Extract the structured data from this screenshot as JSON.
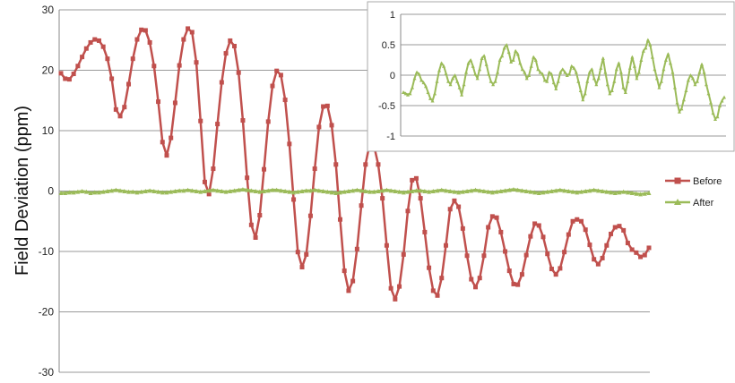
{
  "chart_data": [
    {
      "type": "line",
      "title": "",
      "xlabel": "",
      "ylabel": "Field Deviation (ppm)",
      "ylim": [
        -30,
        30
      ],
      "yticks": [
        30,
        20,
        10,
        0,
        -10,
        -20,
        -30
      ],
      "grid": true,
      "legend_position": "right",
      "series": [
        {
          "name": "Before",
          "color": "#c0504d",
          "marker": "square",
          "values": [
            19.5,
            18.6,
            18.5,
            19.4,
            20.7,
            22.2,
            23.6,
            24.6,
            25.1,
            24.9,
            23.9,
            21.9,
            18.6,
            13.5,
            12.4,
            13.9,
            17.7,
            21.9,
            25.1,
            26.7,
            26.6,
            24.6,
            20.7,
            14.8,
            8.1,
            5.9,
            8.8,
            14.6,
            20.8,
            25.1,
            26.9,
            26.3,
            21.3,
            11.6,
            1.5,
            -0.5,
            3.7,
            11.1,
            18.0,
            22.8,
            24.9,
            24.0,
            19.6,
            11.7,
            2.2,
            -5.6,
            -7.7,
            -4.0,
            3.6,
            11.5,
            17.4,
            19.9,
            19.2,
            15.1,
            7.8,
            -1.4,
            -10.1,
            -12.6,
            -10.5,
            -4.1,
            3.7,
            10.6,
            14.0,
            14.1,
            10.9,
            4.4,
            -4.7,
            -13.2,
            -16.5,
            -14.9,
            -9.6,
            -2.4,
            4.4,
            7.9,
            7.5,
            4.4,
            -1.2,
            -9.0,
            -16.1,
            -17.9,
            -15.8,
            -10.5,
            -3.3,
            1.8,
            2.1,
            -1.2,
            -6.8,
            -12.7,
            -16.5,
            -17.3,
            -14.4,
            -9.0,
            -3.0,
            -1.6,
            -2.6,
            -6.2,
            -10.7,
            -14.6,
            -15.9,
            -14.4,
            -10.7,
            -6.0,
            -4.2,
            -4.4,
            -6.8,
            -10.0,
            -13.2,
            -15.4,
            -15.5,
            -13.8,
            -10.6,
            -7.5,
            -5.4,
            -5.7,
            -7.6,
            -10.4,
            -12.9,
            -13.8,
            -12.8,
            -10.1,
            -7.2,
            -5.0,
            -4.7,
            -5.0,
            -6.4,
            -8.9,
            -11.3,
            -12.1,
            -11.1,
            -9.0,
            -7.1,
            -6.0,
            -5.8,
            -6.5,
            -8.6,
            -9.7,
            -10.2,
            -10.9,
            -10.6,
            -9.4
          ]
        },
        {
          "name": "After",
          "color": "#9bbb59",
          "marker": "triangle",
          "values": [
            -0.3,
            -0.3,
            -0.2,
            -0.2,
            -0.1,
            0.0,
            -0.1,
            -0.3,
            -0.2,
            -0.2,
            -0.1,
            0.0,
            0.1,
            0.2,
            0.1,
            0.0,
            -0.1,
            -0.1,
            -0.2,
            -0.1,
            0.0,
            0.1,
            0.0,
            -0.1,
            -0.2,
            -0.2,
            -0.1,
            0.0,
            0.1,
            0.1,
            0.2,
            0.1,
            0.0,
            -0.1,
            0.0,
            0.1,
            0.2,
            0.1,
            0.0,
            -0.1,
            0.0,
            0.1,
            0.2,
            0.3,
            0.2,
            0.1,
            0.0,
            -0.1,
            0.0,
            0.1,
            0.2,
            0.2,
            0.1,
            0.0,
            -0.1,
            -0.2,
            -0.1,
            0.0,
            0.1,
            0.1,
            0.2,
            0.1,
            0.0,
            -0.1,
            -0.2,
            -0.3,
            -0.2,
            -0.1,
            0.0,
            0.1,
            0.2,
            0.1,
            0.0,
            -0.1,
            -0.1,
            0.0,
            0.1,
            0.2,
            0.1,
            0.0,
            -0.1,
            -0.2,
            -0.1,
            0.0,
            0.1,
            0.1,
            0.0,
            -0.1,
            0.0,
            0.1,
            0.2,
            0.1,
            0.0,
            -0.1,
            -0.2,
            -0.1,
            0.0,
            0.1,
            0.2,
            0.1,
            0.0,
            -0.1,
            -0.2,
            -0.1,
            0.0,
            0.1,
            0.2,
            0.3,
            0.2,
            0.1,
            0.0,
            -0.1,
            -0.2,
            -0.3,
            -0.2,
            -0.1,
            0.0,
            0.1,
            0.2,
            0.1,
            0.0,
            -0.1,
            -0.2,
            -0.1,
            0.0,
            0.1,
            0.2,
            0.1,
            0.0,
            -0.1,
            -0.2,
            -0.3,
            -0.2,
            -0.1,
            -0.2,
            -0.3,
            -0.4,
            -0.5,
            -0.4,
            -0.3
          ]
        }
      ]
    },
    {
      "type": "line",
      "title": "",
      "xlabel": "",
      "ylabel": "",
      "ylim": [
        -1,
        1
      ],
      "yticks": [
        "1",
        "0.5",
        "0",
        "-0.5",
        "-1"
      ],
      "grid": true,
      "series": [
        {
          "name": "After",
          "color": "#9bbb59",
          "marker": "triangle",
          "values": [
            -0.28,
            -0.3,
            -0.32,
            -0.3,
            -0.2,
            -0.05,
            0.05,
            0.02,
            -0.08,
            -0.12,
            -0.18,
            -0.28,
            -0.38,
            -0.42,
            -0.3,
            -0.1,
            0.08,
            0.2,
            0.15,
            0.03,
            -0.1,
            -0.15,
            -0.05,
            0.0,
            -0.1,
            -0.2,
            -0.32,
            -0.15,
            0.05,
            0.2,
            0.25,
            0.15,
            0.02,
            -0.05,
            0.1,
            0.28,
            0.32,
            0.18,
            0.02,
            -0.1,
            -0.15,
            -0.1,
            0.05,
            0.25,
            0.32,
            0.45,
            0.5,
            0.38,
            0.22,
            0.25,
            0.4,
            0.35,
            0.2,
            0.1,
            0.05,
            -0.05,
            0.0,
            0.15,
            0.3,
            0.25,
            0.1,
            0.05,
            0.02,
            -0.08,
            -0.1,
            0.05,
            0.02,
            -0.12,
            -0.22,
            -0.1,
            0.05,
            0.1,
            0.05,
            0.0,
            0.02,
            0.15,
            0.12,
            0.05,
            -0.1,
            -0.25,
            -0.4,
            -0.3,
            -0.1,
            0.05,
            0.1,
            -0.05,
            -0.15,
            -0.05,
            0.12,
            0.28,
            0.05,
            -0.15,
            -0.3,
            -0.25,
            -0.1,
            0.1,
            0.2,
            0.05,
            -0.2,
            -0.28,
            -0.1,
            0.12,
            0.3,
            0.15,
            -0.05,
            0.05,
            0.25,
            0.4,
            0.45,
            0.58,
            0.5,
            0.3,
            0.1,
            -0.05,
            -0.2,
            -0.1,
            0.1,
            0.25,
            0.35,
            0.2,
            0.05,
            -0.2,
            -0.45,
            -0.6,
            -0.55,
            -0.4,
            -0.25,
            -0.08,
            0.0,
            -0.05,
            -0.15,
            -0.1,
            0.05,
            0.18,
            0.05,
            -0.15,
            -0.3,
            -0.45,
            -0.62,
            -0.72,
            -0.68,
            -0.5,
            -0.42,
            -0.36
          ]
        }
      ]
    }
  ]
}
